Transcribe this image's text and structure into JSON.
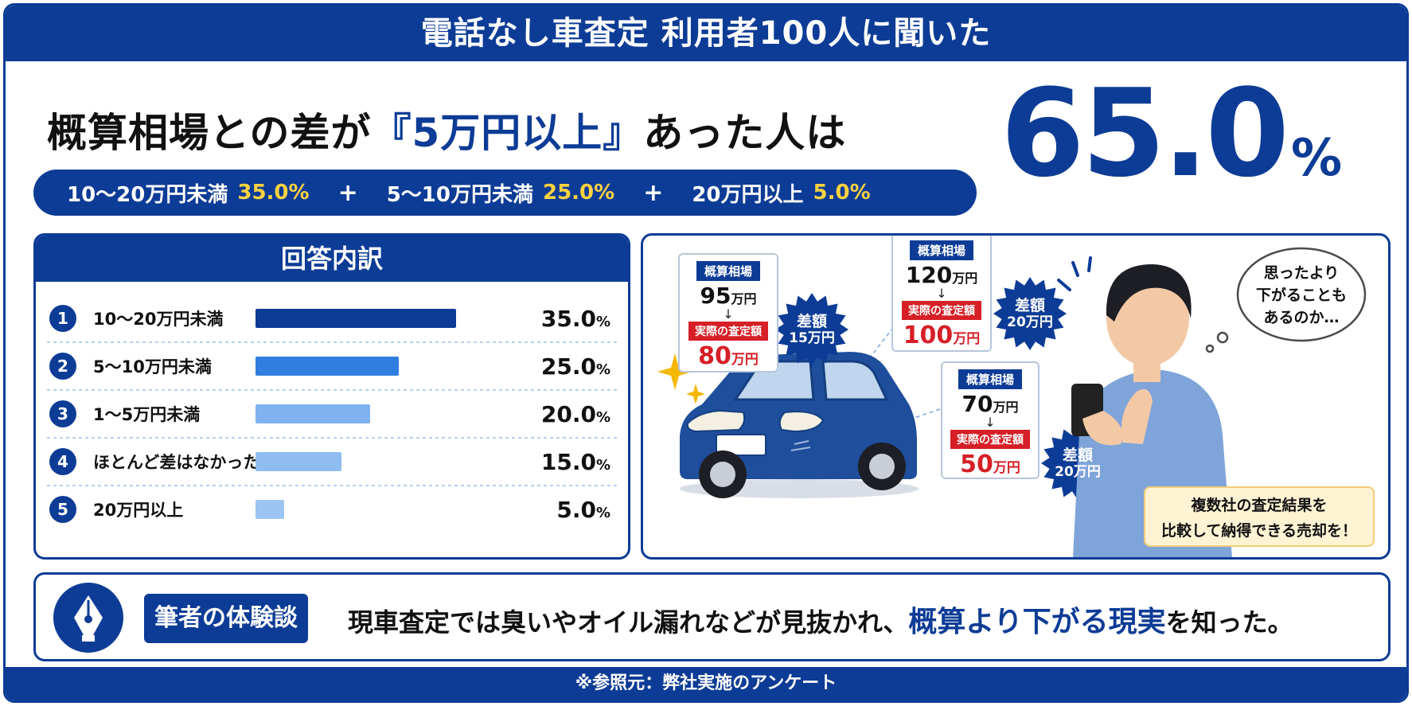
{
  "banner": {
    "title": "電話なし車査定 利用者100人に聞いた"
  },
  "headline": {
    "prefix": "概算相場との差が",
    "highlight": "『5万円以上』",
    "suffix": "あった人は"
  },
  "big_stat": {
    "value": "65.0",
    "unit": "%"
  },
  "breakdown": [
    {
      "label": "10〜20万円未満",
      "value": "35.0%"
    },
    {
      "label": "5〜10万円未満",
      "value": "25.0%"
    },
    {
      "label": "20万円以上",
      "value": "5.0%"
    }
  ],
  "breakdown_plus": "+",
  "panel": {
    "title": "回答内訳"
  },
  "chart_data": {
    "type": "bar",
    "orientation": "horizontal",
    "title": "回答内訳",
    "numbers": [
      "1",
      "2",
      "3",
      "4",
      "5"
    ],
    "categories": [
      "10〜20万円未満",
      "5〜10万円未満",
      "1〜5万円未満",
      "ほとんど差はなかった",
      "20万円以上"
    ],
    "values": [
      35.0,
      25.0,
      20.0,
      15.0,
      5.0
    ],
    "value_labels": [
      "35.0",
      "25.0",
      "20.0",
      "15.0",
      "5.0"
    ],
    "unit": "%",
    "xlim": [
      0,
      35
    ],
    "colors": [
      "#0d3c96",
      "#2f7ee0",
      "#7fb2ef",
      "#8fbcf1",
      "#9cc5f3"
    ],
    "grid": false
  },
  "illustration": {
    "cards": [
      {
        "tag": "概算相場",
        "base": "95",
        "base_unit": "万円",
        "arrow": "↓",
        "actual_tag": "実際の査定額",
        "actual": "80",
        "actual_unit": "万円",
        "diff_label": "差額",
        "diff": "15万円"
      },
      {
        "tag": "概算相場",
        "base": "120",
        "base_unit": "万円",
        "arrow": "↓",
        "actual_tag": "実際の査定額",
        "actual": "100",
        "actual_unit": "万円",
        "diff_label": "差額",
        "diff": "20万円"
      },
      {
        "tag": "概算相場",
        "base": "70",
        "base_unit": "万円",
        "arrow": "↓",
        "actual_tag": "実際の査定額",
        "actual": "50",
        "actual_unit": "万円",
        "diff_label": "差額",
        "diff": "20万円"
      }
    ],
    "thought_lines": [
      "思ったより",
      "下がることも",
      "あるのか…"
    ],
    "note_lines": [
      "複数社の査定結果を",
      "比較して納得できる売却を！"
    ],
    "car_color": "#1f4e9c",
    "icons": [
      "car-illustration",
      "sparkle-icon",
      "person-illustration",
      "smartphone-icon",
      "thought-bubble"
    ]
  },
  "experience": {
    "icon": "pen-nib-icon",
    "tag": "筆者の体験談",
    "text_prefix": "現車査定では臭いやオイル漏れなどが見抜かれ、",
    "text_highlight": "概算より下がる現実",
    "text_suffix": "を知った。"
  },
  "footer": {
    "text": "※参照元：弊社実施のアンケート"
  },
  "colors": {
    "brand": "#0d3c96",
    "accent_yellow": "#ffd23f",
    "accent_red": "#d61f26"
  }
}
